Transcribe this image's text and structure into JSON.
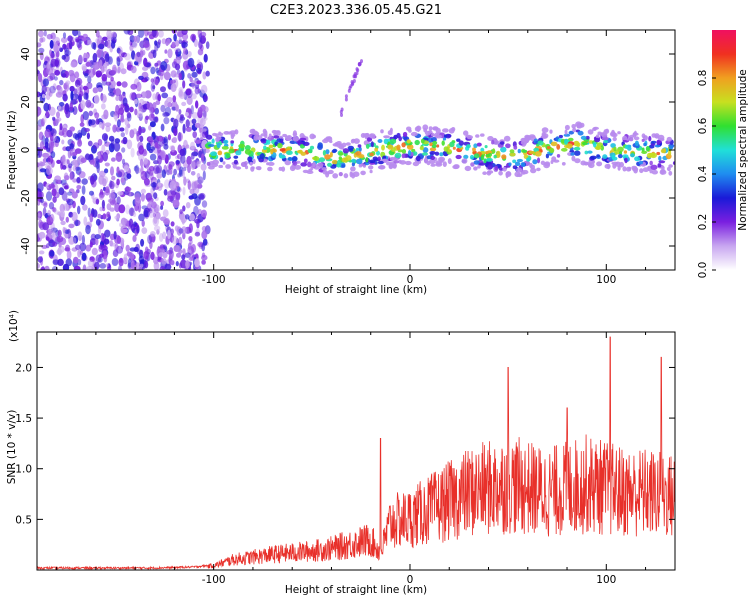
{
  "title": "C2E3.2023.336.05.45.G21",
  "chart_data": [
    {
      "type": "heatmap",
      "xlabel": "Height of straight line (km)",
      "ylabel": "Frequency (Hz)",
      "xlim": [
        -190,
        135
      ],
      "ylim": [
        -50,
        50
      ],
      "xticks": [
        -100,
        0,
        100
      ],
      "xtick_labels": [
        "-100",
        "0",
        "100"
      ],
      "yticks": [
        -40,
        -20,
        0,
        20,
        40
      ],
      "ytick_labels": [
        "-40",
        "-20",
        "0",
        "20",
        "40"
      ],
      "colorbar": {
        "label": "Normalized spectral amplitude",
        "range": [
          0,
          1
        ],
        "ticks": [
          0,
          0.2,
          0.4,
          0.6,
          0.8
        ],
        "tick_labels": [
          "0.0",
          "0.2",
          "0.4",
          "0.6",
          "0.8"
        ],
        "colormap": [
          "#ffffff",
          "#c8a6f0",
          "#7a1fe0",
          "#1a1ad8",
          "#1f8cf0",
          "#20e0d8",
          "#30e030",
          "#c8e020",
          "#f0a020",
          "#f03020",
          "#f01060"
        ]
      },
      "regions": {
        "noise_band": {
          "x": [
            -190,
            -103
          ],
          "y": [
            -50,
            50
          ],
          "description_amplitude": 0.1
        },
        "signal_band": {
          "x": [
            -103,
            135
          ],
          "center_y": [
            [
              -100,
              0
            ],
            [
              -60,
              0
            ],
            [
              -35,
              -4
            ],
            [
              -20,
              -1
            ],
            [
              0,
              2
            ],
            [
              20,
              1
            ],
            [
              40,
              -2
            ],
            [
              55,
              -3
            ],
            [
              70,
              1
            ],
            [
              85,
              3
            ],
            [
              100,
              0
            ],
            [
              120,
              -1
            ],
            [
              135,
              -2
            ]
          ],
          "half_width_hz": 5
        },
        "faint_streak": {
          "x": [
            -35,
            -24
          ],
          "y": [
            15,
            40
          ]
        }
      }
    },
    {
      "type": "line",
      "xlabel": "Height of straight line (km)",
      "ylabel": "SNR (10 * v/v)",
      "y_multiplier": "(x10⁴)",
      "xlim": [
        -190,
        135
      ],
      "ylim": [
        0,
        2.35
      ],
      "xticks": [
        -100,
        0,
        100
      ],
      "xtick_labels": [
        "-100",
        "0",
        "100"
      ],
      "yticks": [
        0.5,
        1.0,
        1.5,
        2.0
      ],
      "ytick_labels": [
        "0.5",
        "1.0",
        "1.5",
        "2.0"
      ],
      "color": "#e8302a",
      "series": [
        {
          "x": [
            -190,
            -160,
            -130,
            -110,
            -100,
            -90,
            -80,
            -70,
            -60,
            -50,
            -40,
            -30,
            -20,
            -15,
            -10,
            0,
            10,
            20,
            30,
            40,
            50,
            60,
            70,
            80,
            90,
            100,
            110,
            120,
            135
          ],
          "values": [
            0.02,
            0.02,
            0.02,
            0.03,
            0.05,
            0.12,
            0.15,
            0.18,
            0.2,
            0.22,
            0.25,
            0.3,
            0.35,
            0.2,
            0.55,
            0.6,
            0.7,
            0.8,
            0.9,
            0.95,
            1.0,
            0.95,
            0.9,
            0.95,
            1.0,
            0.95,
            0.9,
            0.9,
            0.85
          ],
          "peaks": [
            [
              -15,
              1.3
            ],
            [
              50,
              2.0
            ],
            [
              80,
              1.6
            ],
            [
              102,
              2.3
            ],
            [
              128,
              2.1
            ]
          ]
        }
      ]
    }
  ]
}
